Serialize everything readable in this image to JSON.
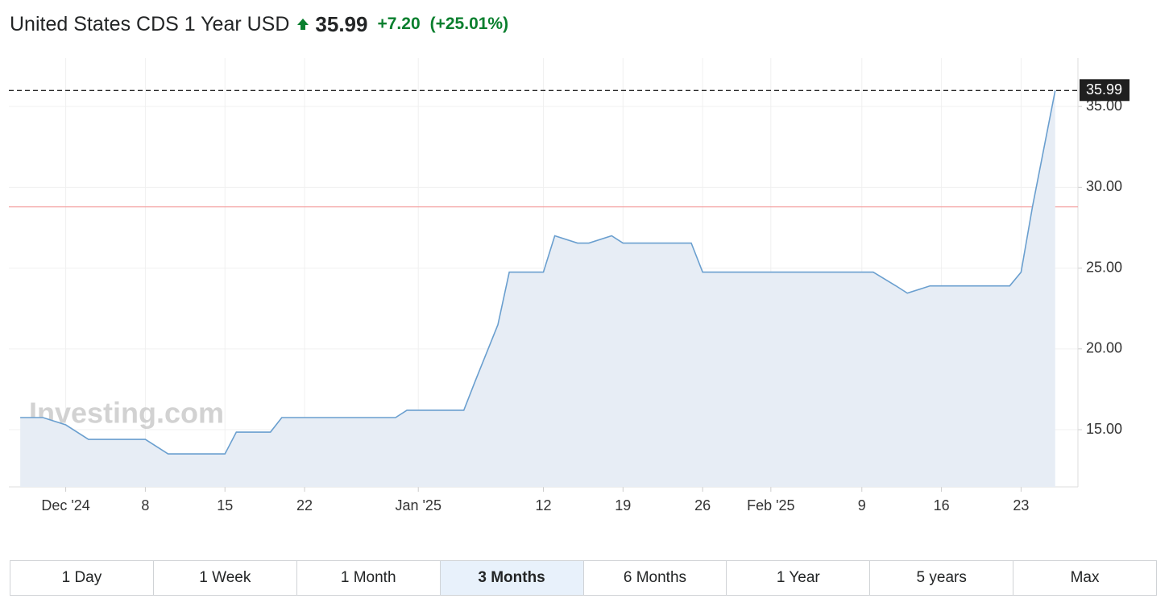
{
  "header": {
    "title": "United States CDS 1 Year USD",
    "price": "35.99",
    "change": "+7.20",
    "change_percent": "(+25.01%)"
  },
  "chart_data": {
    "type": "area",
    "x": [
      "2024-11-27",
      "2024-11-29",
      "2024-12-01",
      "2024-12-03",
      "2024-12-08",
      "2024-12-10",
      "2024-12-15",
      "2024-12-16",
      "2024-12-19",
      "2024-12-20",
      "2024-12-30",
      "2024-12-31",
      "2025-01-05",
      "2025-01-06",
      "2025-01-08",
      "2025-01-09",
      "2025-01-12",
      "2025-01-13",
      "2025-01-15",
      "2025-01-16",
      "2025-01-18",
      "2025-01-19",
      "2025-01-25",
      "2025-01-26",
      "2025-02-10",
      "2025-02-12",
      "2025-02-13",
      "2025-02-15",
      "2025-02-22",
      "2025-02-23",
      "2025-02-24",
      "2025-02-26"
    ],
    "values": [
      15.75,
      15.75,
      15.3,
      14.4,
      14.4,
      13.5,
      13.5,
      14.85,
      14.85,
      15.75,
      15.75,
      16.2,
      16.2,
      18.0,
      21.5,
      24.75,
      24.75,
      27.0,
      26.55,
      26.55,
      27.0,
      26.55,
      26.55,
      24.75,
      24.75,
      23.9,
      23.45,
      23.9,
      23.9,
      24.75,
      28.79,
      35.99
    ],
    "color": "#6a9fcf",
    "fill": "#e7edf5",
    "xlim": [
      "2024-11-26",
      "2025-02-28"
    ],
    "xticks": [
      {
        "value": "2024-12-01",
        "label": "Dec '24"
      },
      {
        "value": "2024-12-08",
        "label": "8"
      },
      {
        "value": "2024-12-15",
        "label": "15"
      },
      {
        "value": "2024-12-22",
        "label": "22"
      },
      {
        "value": "2025-01-01",
        "label": "Jan '25"
      },
      {
        "value": "2025-01-12",
        "label": "12"
      },
      {
        "value": "2025-01-19",
        "label": "19"
      },
      {
        "value": "2025-01-26",
        "label": "26"
      },
      {
        "value": "2025-02-01",
        "label": "Feb '25"
      },
      {
        "value": "2025-02-09",
        "label": "9"
      },
      {
        "value": "2025-02-16",
        "label": "16"
      },
      {
        "value": "2025-02-23",
        "label": "23"
      }
    ],
    "ylim": [
      11.46,
      38.0
    ],
    "yticks": [
      {
        "value": 15,
        "label": "15.00"
      },
      {
        "value": 20,
        "label": "20.00"
      },
      {
        "value": 25,
        "label": "25.00"
      },
      {
        "value": 30,
        "label": "30.00"
      },
      {
        "value": 35,
        "label": "35.00"
      }
    ],
    "grid": true,
    "previous_close": 28.79,
    "watermark": "Investing.com"
  },
  "ranges": {
    "buttons": [
      "1 Day",
      "1 Week",
      "1 Month",
      "3 Months",
      "6 Months",
      "1 Year",
      "5 years",
      "Max"
    ],
    "selected": "3 Months"
  }
}
